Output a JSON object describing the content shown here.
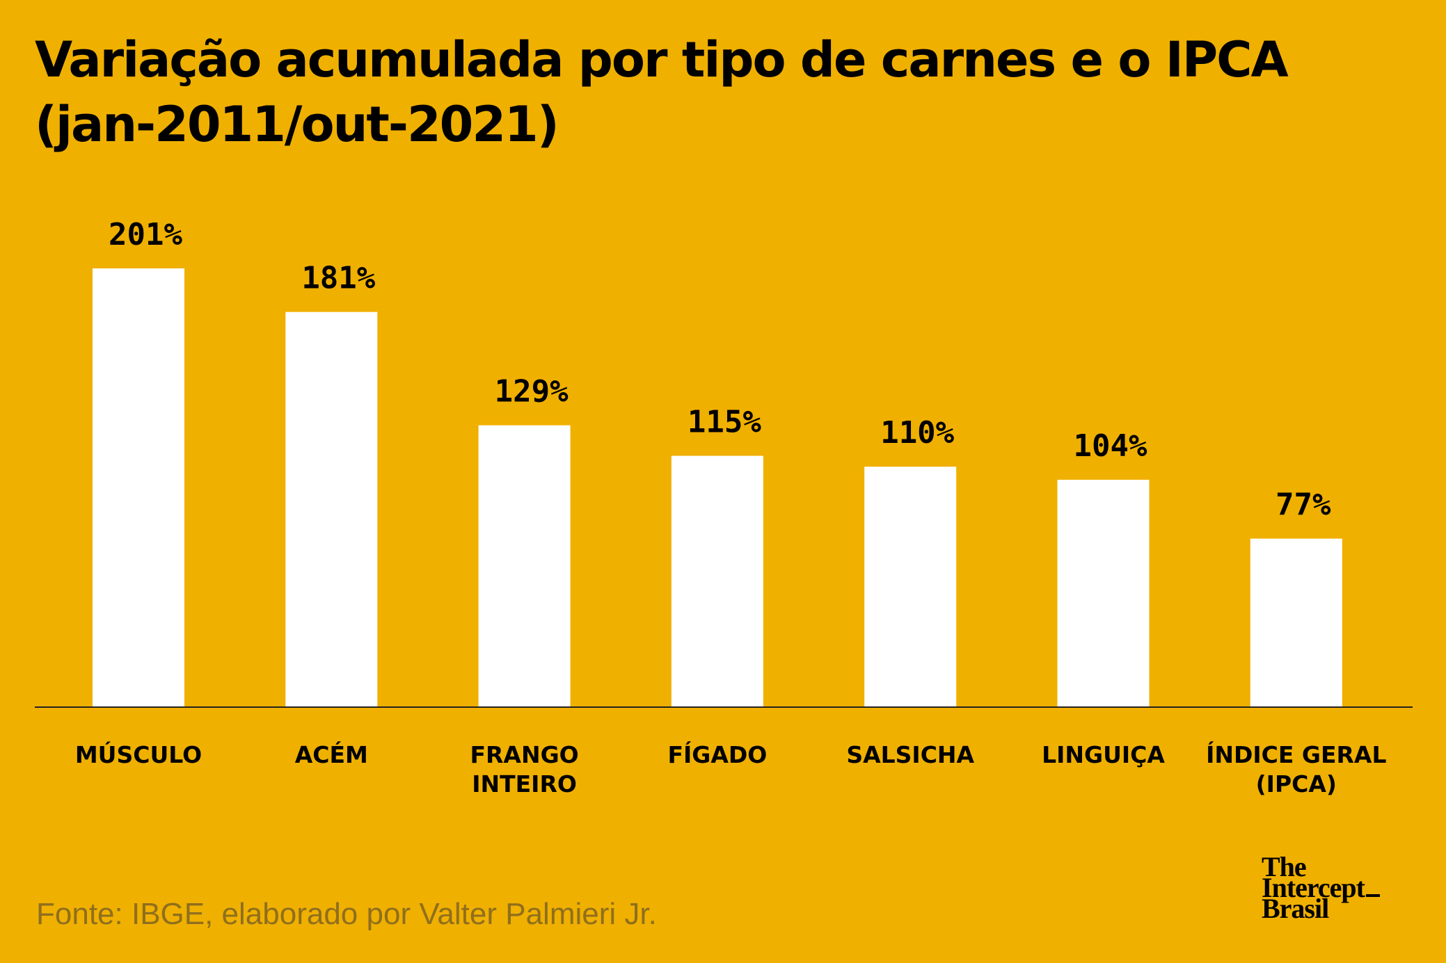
{
  "colors": {
    "background": "#F0B000",
    "bar": "#FFFFFF",
    "text": "#000000",
    "source": "#8F6F1E"
  },
  "title": {
    "line1": "Variação acumulada por tipo de  carnes e o IPCA",
    "line2": "(jan-2011/out-2021)"
  },
  "source": "Fonte: IBGE, elaborado por Valter Palmieri Jr.",
  "logo": {
    "line1": "The",
    "line2": "Intercept",
    "line3": "Brasil"
  },
  "chart_data": {
    "type": "bar",
    "title": "Variação acumulada por tipo de  carnes e o IPCA (jan-2011/out-2021)",
    "categories": [
      [
        "MÚSCULO"
      ],
      [
        "ACÉM"
      ],
      [
        "FRANGO",
        "INTEIRO"
      ],
      [
        "FÍGADO"
      ],
      [
        "SALSICHA"
      ],
      [
        "LINGUIÇA"
      ],
      [
        "ÍNDICE GERAL",
        "(IPCA)"
      ]
    ],
    "values": [
      201,
      181,
      129,
      115,
      110,
      104,
      77
    ],
    "value_labels": [
      "201%",
      "181%",
      "129%",
      "115%",
      "110%",
      "104%",
      "77%"
    ],
    "unit": "%",
    "xlabel": "",
    "ylabel": "",
    "ylim": [
      0,
      201
    ],
    "grid": false,
    "legend": "none"
  }
}
